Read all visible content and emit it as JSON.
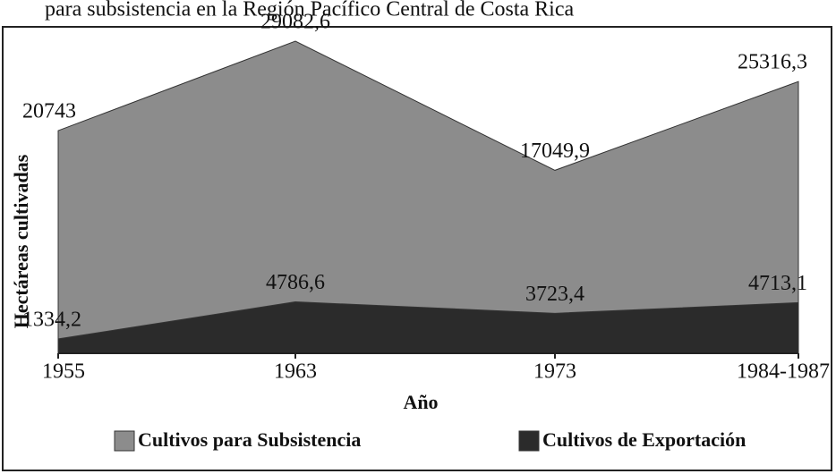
{
  "chart_data": {
    "type": "area",
    "title": "para subsistencia en la Región Pacífico Central de Costa Rica",
    "x_label": "Año",
    "y_label": "Hectáreas cultivadas",
    "categories": [
      "1955",
      "1963",
      "1973",
      "1984-1987"
    ],
    "series": [
      {
        "name": "Cultivos para Subsistencia",
        "color": "#8c8c8c",
        "values": [
          20743,
          29082.6,
          17049.9,
          25316.3
        ],
        "value_labels": [
          "20743",
          "29082,6",
          "17049,9",
          "25316,3"
        ]
      },
      {
        "name": "Cultivos de Exportación",
        "color": "#2b2b2b",
        "values": [
          1334.2,
          4786.6,
          3723.4,
          4713.1
        ],
        "value_labels": [
          "1334,2",
          "4786,6",
          "3723,4",
          "4713,1"
        ]
      }
    ],
    "ylim": [
      0,
      30000
    ],
    "legend": "bottom"
  }
}
